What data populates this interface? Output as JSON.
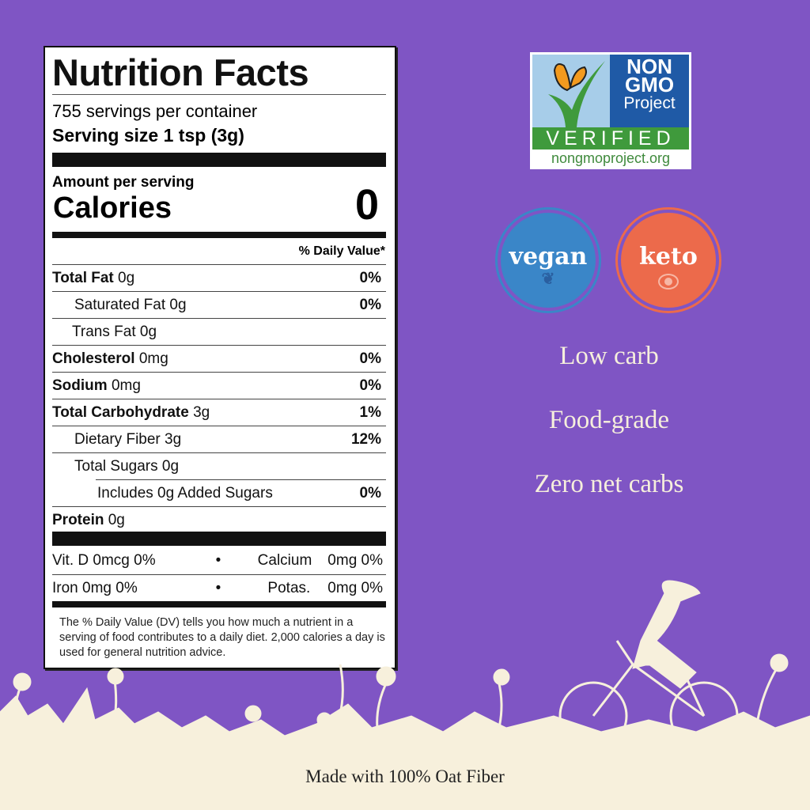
{
  "nutrition": {
    "title": "Nutrition Facts",
    "servings": "755 servings per container",
    "serving_size": "Serving size 1 tsp (3g)",
    "amount_per_serving": "Amount per serving",
    "calories_label": "Calories",
    "calories_value": "0",
    "dv_header": "% Daily Value*",
    "rows": [
      {
        "name": "Total Fat",
        "amount": "0g",
        "dv": "0%",
        "bold": true,
        "indent": 0
      },
      {
        "name": "Saturated Fat",
        "amount": "0g",
        "dv": "0%",
        "bold": false,
        "indent": 1
      },
      {
        "name": "Trans Fat",
        "amount": "0g",
        "dv": "",
        "bold": false,
        "indent": 1
      },
      {
        "name": "Cholesterol",
        "amount": "0mg",
        "dv": "0%",
        "bold": true,
        "indent": 0
      },
      {
        "name": "Sodium",
        "amount": "0mg",
        "dv": "0%",
        "bold": true,
        "indent": 0
      },
      {
        "name": "Total Carbohydrate",
        "amount": "3g",
        "dv": "1%",
        "bold": true,
        "indent": 0
      },
      {
        "name": "Dietary Fiber",
        "amount": "3g",
        "dv": "12%",
        "bold": false,
        "indent": 1
      },
      {
        "name": "Total Sugars",
        "amount": "0g",
        "dv": "",
        "bold": false,
        "indent": 1
      },
      {
        "name": "Includes 0g Added Sugars",
        "amount": "",
        "dv": "0%",
        "bold": false,
        "indent": 2
      },
      {
        "name": "Protein",
        "amount": "0g",
        "dv": "",
        "bold": true,
        "indent": 0
      }
    ],
    "vitamins": [
      {
        "left": "Vit. D 0mcg 0%",
        "bullet": "•",
        "right_name": "Calcium",
        "right_value": "0mg 0%"
      },
      {
        "left": "Iron 0mg 0%",
        "bullet": "•",
        "right_name": "Potas.",
        "right_value": "0mg 0%"
      }
    ],
    "footnote": "The % Daily Value (DV) tells you how much a nutrient in a serving of food contributes to a daily diet. 2,000 calories a day is used for general nutrition advice."
  },
  "badges": {
    "nongmo": {
      "line1": "NON",
      "line2": "GMO",
      "line3": "Project",
      "verified": "VERIFIED",
      "url": "nongmoproject.org"
    },
    "vegan": "vegan",
    "keto": "keto"
  },
  "features": [
    "Low carb",
    "Food-grade",
    "Zero net carbs"
  ],
  "footer": "Made with 100% Oat Fiber",
  "colors": {
    "background": "#7f55c4",
    "cream": "#f7f0dc",
    "vegan": "#3a86c8",
    "keto": "#ec6a4b",
    "nongmo_blue": "#1f5aa6",
    "nongmo_green": "#3f9a3c"
  }
}
